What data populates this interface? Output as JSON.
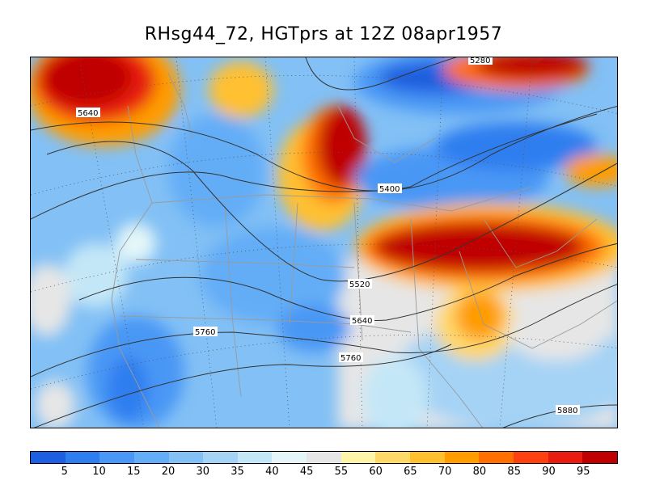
{
  "title": "RHsg44_72, HGTprs at 12Z  08apr1957",
  "contour_labels": [
    "5280",
    "5640",
    "5400",
    "5520",
    "5640",
    "5760",
    "5760",
    "5880"
  ],
  "legend": {
    "colors": [
      "#1e5fe0",
      "#2f7ef0",
      "#4a97f5",
      "#64adf7",
      "#82c0f5",
      "#a5d3f5",
      "#c4e7f7",
      "#e4f6f8",
      "#e6e6e6",
      "#fff5a8",
      "#ffd86a",
      "#ffc030",
      "#ff9c00",
      "#ff7000",
      "#ff4010",
      "#e81c10",
      "#c00000"
    ],
    "labels": [
      "5",
      "10",
      "15",
      "20",
      "30",
      "35",
      "40",
      "45",
      "55",
      "60",
      "65",
      "70",
      "80",
      "85",
      "90",
      "95"
    ]
  }
}
